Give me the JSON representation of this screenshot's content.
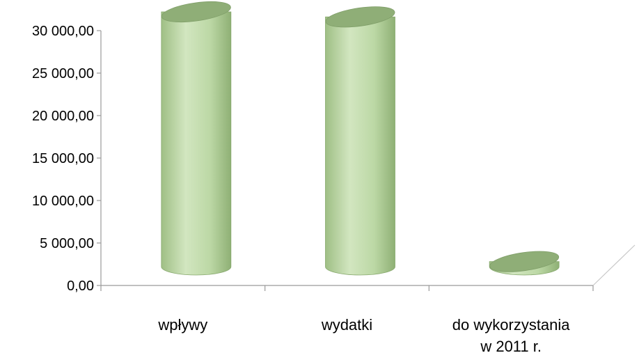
{
  "chart_data": {
    "type": "bar",
    "style": "3d-cylinder",
    "title": "",
    "xlabel": "",
    "ylabel": "",
    "categories": [
      [
        "wpływy"
      ],
      [
        "wydatki"
      ],
      [
        "do wykorzystania",
        "w 2011 r."
      ]
    ],
    "values": [
      30000,
      29400,
      600
    ],
    "ylim": [
      0,
      30000
    ],
    "yticks": [
      {
        "value": 0,
        "label": "0,00"
      },
      {
        "value": 5000,
        "label": "5 000,00"
      },
      {
        "value": 10000,
        "label": "10 000,00"
      },
      {
        "value": 15000,
        "label": "15 000,00"
      },
      {
        "value": 20000,
        "label": "20 000,00"
      },
      {
        "value": 25000,
        "label": "25 000,00"
      },
      {
        "value": 30000,
        "label": "30 000,00"
      }
    ],
    "grid": false,
    "legend": "none",
    "colors": {
      "bar_light": "#c9e0b4",
      "bar_mid": "#b3d19b",
      "bar_dark": "#86a86c",
      "bar_top": "#8fae77"
    }
  }
}
